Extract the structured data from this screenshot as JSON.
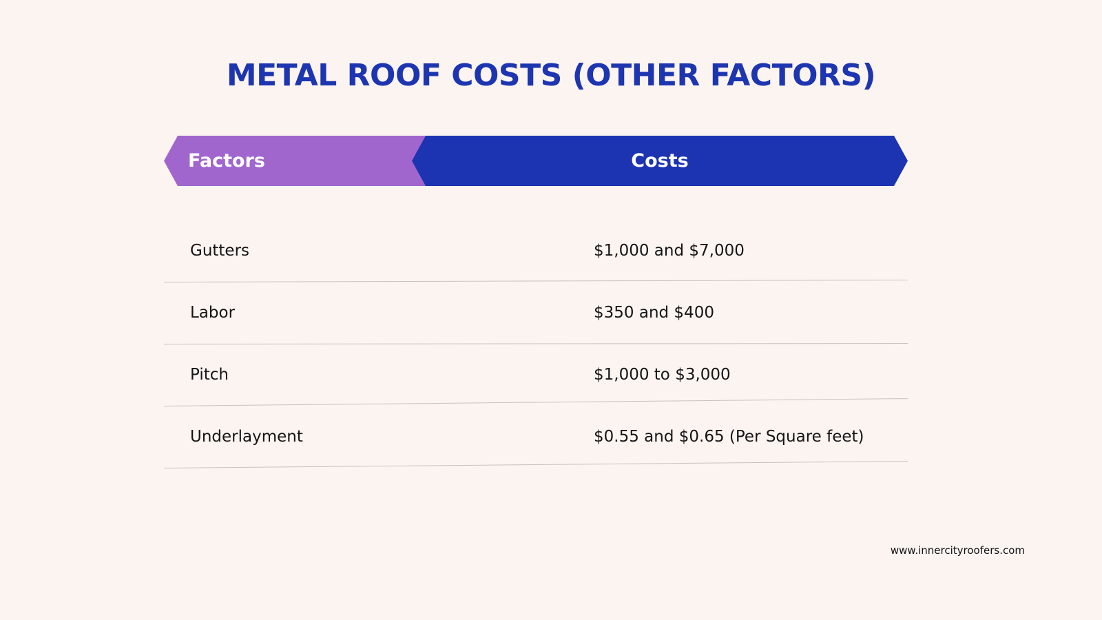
{
  "title": "METAL ROOF COSTS (OTHER FACTORS)",
  "table": {
    "headers": {
      "factors": "Factors",
      "costs": "Costs"
    },
    "rows": [
      {
        "factor": "Gutters",
        "cost": "$1,000 and $7,000"
      },
      {
        "factor": "Labor",
        "cost": "$350 and $400"
      },
      {
        "factor": "Pitch",
        "cost": "$1,000 to $3,000"
      },
      {
        "factor": "Underlayment",
        "cost": "$0.55 and $0.65 (Per Square feet)"
      }
    ]
  },
  "footer": {
    "url": "www.innercityroofers.com"
  },
  "colors": {
    "background": "#fcf4f1",
    "title": "#1d35b0",
    "header_factors": "#a066cd",
    "header_costs": "#1c34b1",
    "divider": "#c7c1c1"
  }
}
